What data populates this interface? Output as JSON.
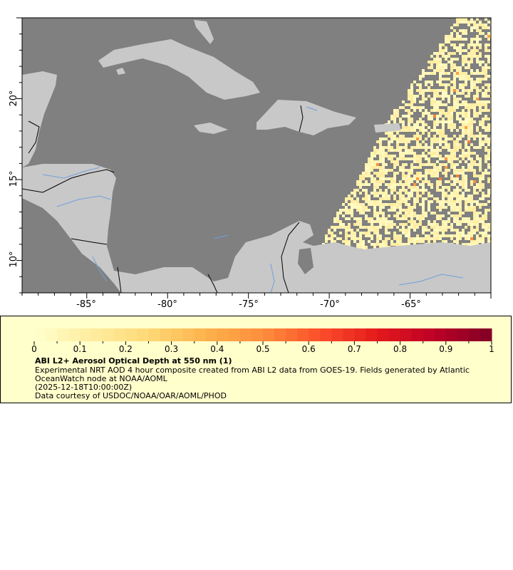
{
  "map": {
    "lon_range": [
      -89,
      -60
    ],
    "lat_range": [
      8,
      25
    ],
    "x_tick_labels": [
      "-85°",
      "-80°",
      "-75°",
      "-70°",
      "-65°"
    ],
    "x_tick_values": [
      -85,
      -80,
      -75,
      -70,
      -65
    ],
    "y_tick_labels": [
      "10°",
      "15°",
      "20°"
    ],
    "y_tick_values": [
      10,
      15,
      20
    ],
    "colors": {
      "ocean": "#808080",
      "land": "#c8c8c8",
      "rivers": "#6fa0dc",
      "borders": "#000000",
      "states": "#808080"
    }
  },
  "legend": {
    "colorbar": {
      "range": [
        0,
        1
      ],
      "tick_labels": [
        "0",
        "0.1",
        "0.2",
        "0.3",
        "0.4",
        "0.5",
        "0.6",
        "0.7",
        "0.8",
        "0.9",
        "1"
      ],
      "palette": [
        "#ffffcc",
        "#ffeda0",
        "#fed976",
        "#feb24c",
        "#fd8d3c",
        "#fc4e2a",
        "#e31a1c",
        "#bd0026",
        "#800026"
      ]
    },
    "title": "ABI L2+ Aerosol Optical Depth at 550 nm (1)",
    "description": "Experimental NRT AOD 4 hour composite created from ABI L2 data from GOES-19. Fields generated by Atlantic OceanWatch node at NOAA/AOML",
    "time": "(2025-12-18T10:00:00Z)",
    "credit": "Data courtesy of USDOC/NOAA/OAR/AOML/PHOD"
  }
}
